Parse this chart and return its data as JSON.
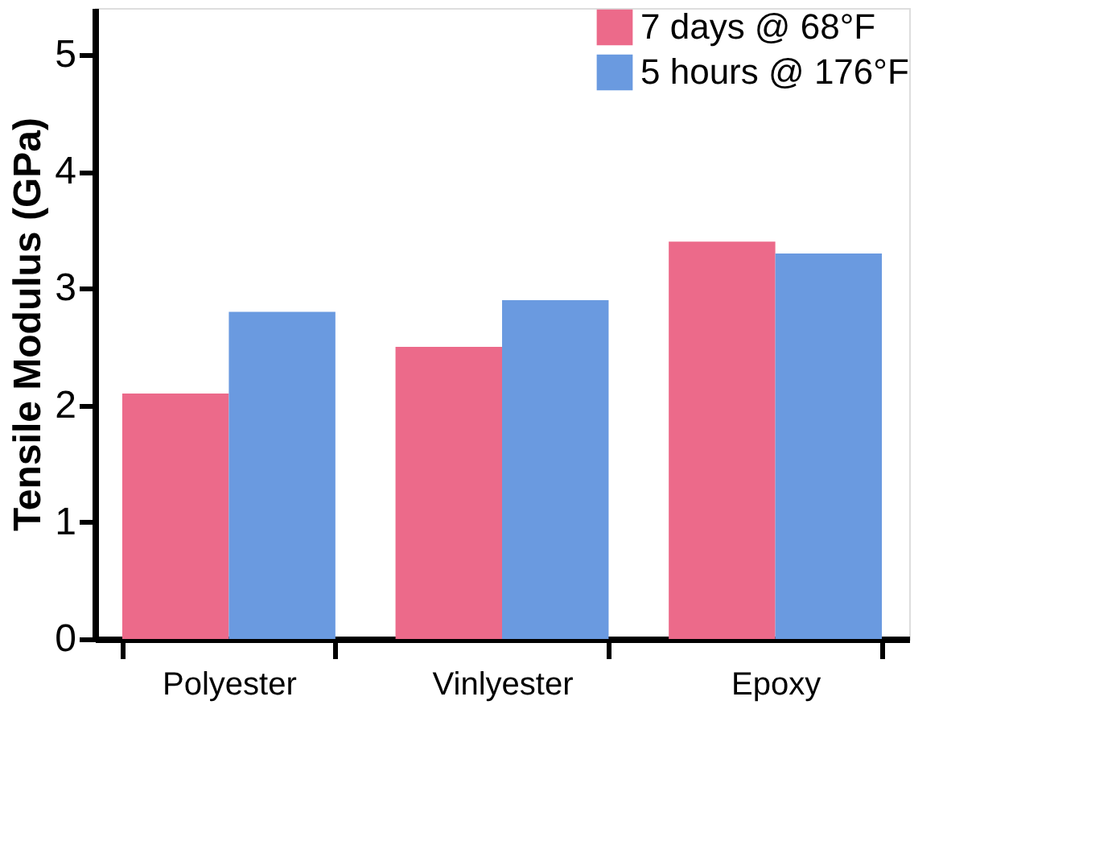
{
  "chart_data": {
    "type": "bar",
    "ylabel": "Tensile Modulus (GPa)",
    "categories": [
      "Polyester",
      "Vinlyester",
      "Epoxy"
    ],
    "series": [
      {
        "name": "7 days @ 68°F",
        "color": "#ec6a8a",
        "values": [
          2.1,
          2.5,
          3.4
        ]
      },
      {
        "name": "5 hours @ 176°F",
        "color": "#6a9ae0",
        "values": [
          2.8,
          2.9,
          3.3
        ]
      }
    ],
    "ylim": [
      0,
      5.4
    ],
    "yticks": [
      0,
      1,
      2,
      3,
      4,
      5
    ],
    "grid": false,
    "legend": "top right"
  }
}
